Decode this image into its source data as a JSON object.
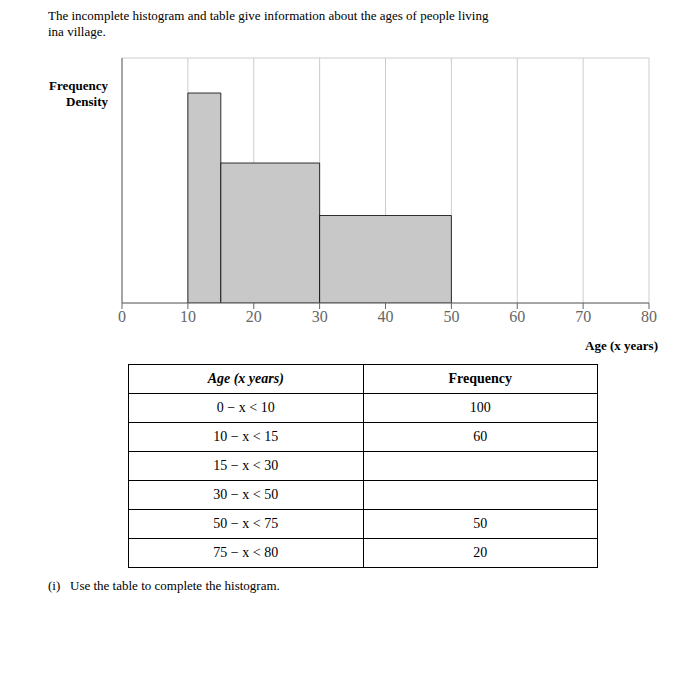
{
  "chart_data": {
    "type": "histogram",
    "title": "The incomplete histogram and table give information about the ages of people living\nina village.",
    "bins": [
      10,
      15,
      30,
      50
    ],
    "values": [
      12,
      8,
      5
    ],
    "color": "#c8c8c8",
    "xlabel": "Age (x years)",
    "ylabel": "Frequency\nDensity",
    "xlim": [
      0,
      80
    ],
    "xticks": [
      0,
      10,
      20,
      30,
      40,
      50,
      60,
      70,
      80
    ],
    "ylim": [
      0,
      14
    ],
    "yticks": [
      0,
      1,
      2,
      3,
      4,
      5,
      6,
      7,
      8,
      9,
      10,
      11,
      12,
      13,
      14
    ],
    "grid": true,
    "tick_labels": "x",
    "table": {
      "columns": [
        "Age (x years)",
        "Frequency"
      ],
      "rows": [
        [
          "0 − x < 10",
          "100"
        ],
        [
          "10 − x < 15",
          "60"
        ],
        [
          "15 − x < 30",
          null
        ],
        [
          "30 − x < 50",
          null
        ],
        [
          "50 − x < 75",
          "50"
        ],
        [
          "75 − x < 80",
          "20"
        ]
      ]
    },
    "footnote": "(i)   Use the table to complete the histogram."
  }
}
